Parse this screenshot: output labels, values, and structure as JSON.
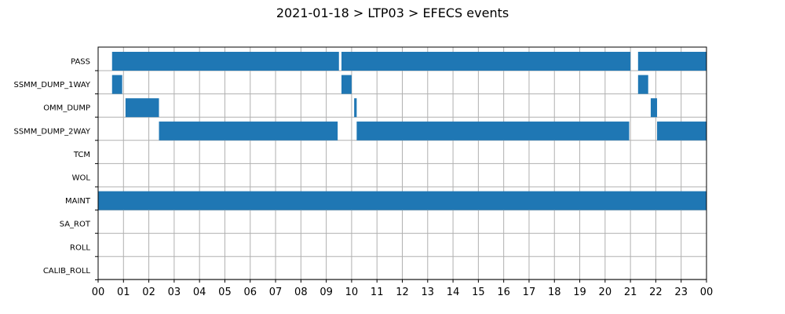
{
  "chart_data": {
    "type": "gantt",
    "title": "2021-01-18 > LTP03 > EFECS events",
    "xlabel": "",
    "ylabel": "",
    "x_unit": "hour",
    "xlim": [
      0,
      24
    ],
    "x_ticks": [
      0,
      1,
      2,
      3,
      4,
      5,
      6,
      7,
      8,
      9,
      10,
      11,
      12,
      13,
      14,
      15,
      16,
      17,
      18,
      19,
      20,
      21,
      22,
      23,
      24
    ],
    "x_tick_labels": [
      "00",
      "01",
      "02",
      "03",
      "04",
      "05",
      "06",
      "07",
      "08",
      "09",
      "10",
      "11",
      "12",
      "13",
      "14",
      "15",
      "16",
      "17",
      "18",
      "19",
      "20",
      "21",
      "22",
      "23",
      "00"
    ],
    "grid": true,
    "bar_color": "#1f77b4",
    "grid_color": "#b0b0b0",
    "categories": [
      "PASS",
      "SSMM_DUMP_1WAY",
      "OMM_DUMP",
      "SSMM_DUMP_2WAY",
      "TCM",
      "WOL",
      "MAINT",
      "SA_ROT",
      "ROLL",
      "CALIB_ROLL"
    ],
    "series": [
      {
        "category": "PASS",
        "intervals": [
          [
            0.55,
            9.5
          ],
          [
            9.6,
            21.0
          ],
          [
            21.3,
            24.0
          ]
        ]
      },
      {
        "category": "SSMM_DUMP_1WAY",
        "intervals": [
          [
            0.55,
            0.95
          ],
          [
            9.6,
            10.0
          ],
          [
            21.3,
            21.7
          ]
        ]
      },
      {
        "category": "OMM_DUMP",
        "intervals": [
          [
            1.08,
            2.4
          ],
          [
            10.1,
            10.2
          ],
          [
            21.8,
            22.05
          ]
        ]
      },
      {
        "category": "SSMM_DUMP_2WAY",
        "intervals": [
          [
            2.4,
            9.45
          ],
          [
            10.2,
            20.95
          ],
          [
            22.05,
            24.0
          ]
        ]
      },
      {
        "category": "TCM",
        "intervals": []
      },
      {
        "category": "WOL",
        "intervals": []
      },
      {
        "category": "MAINT",
        "intervals": [
          [
            0.0,
            24.0
          ]
        ]
      },
      {
        "category": "SA_ROT",
        "intervals": []
      },
      {
        "category": "ROLL",
        "intervals": []
      },
      {
        "category": "CALIB_ROLL",
        "intervals": []
      }
    ]
  }
}
